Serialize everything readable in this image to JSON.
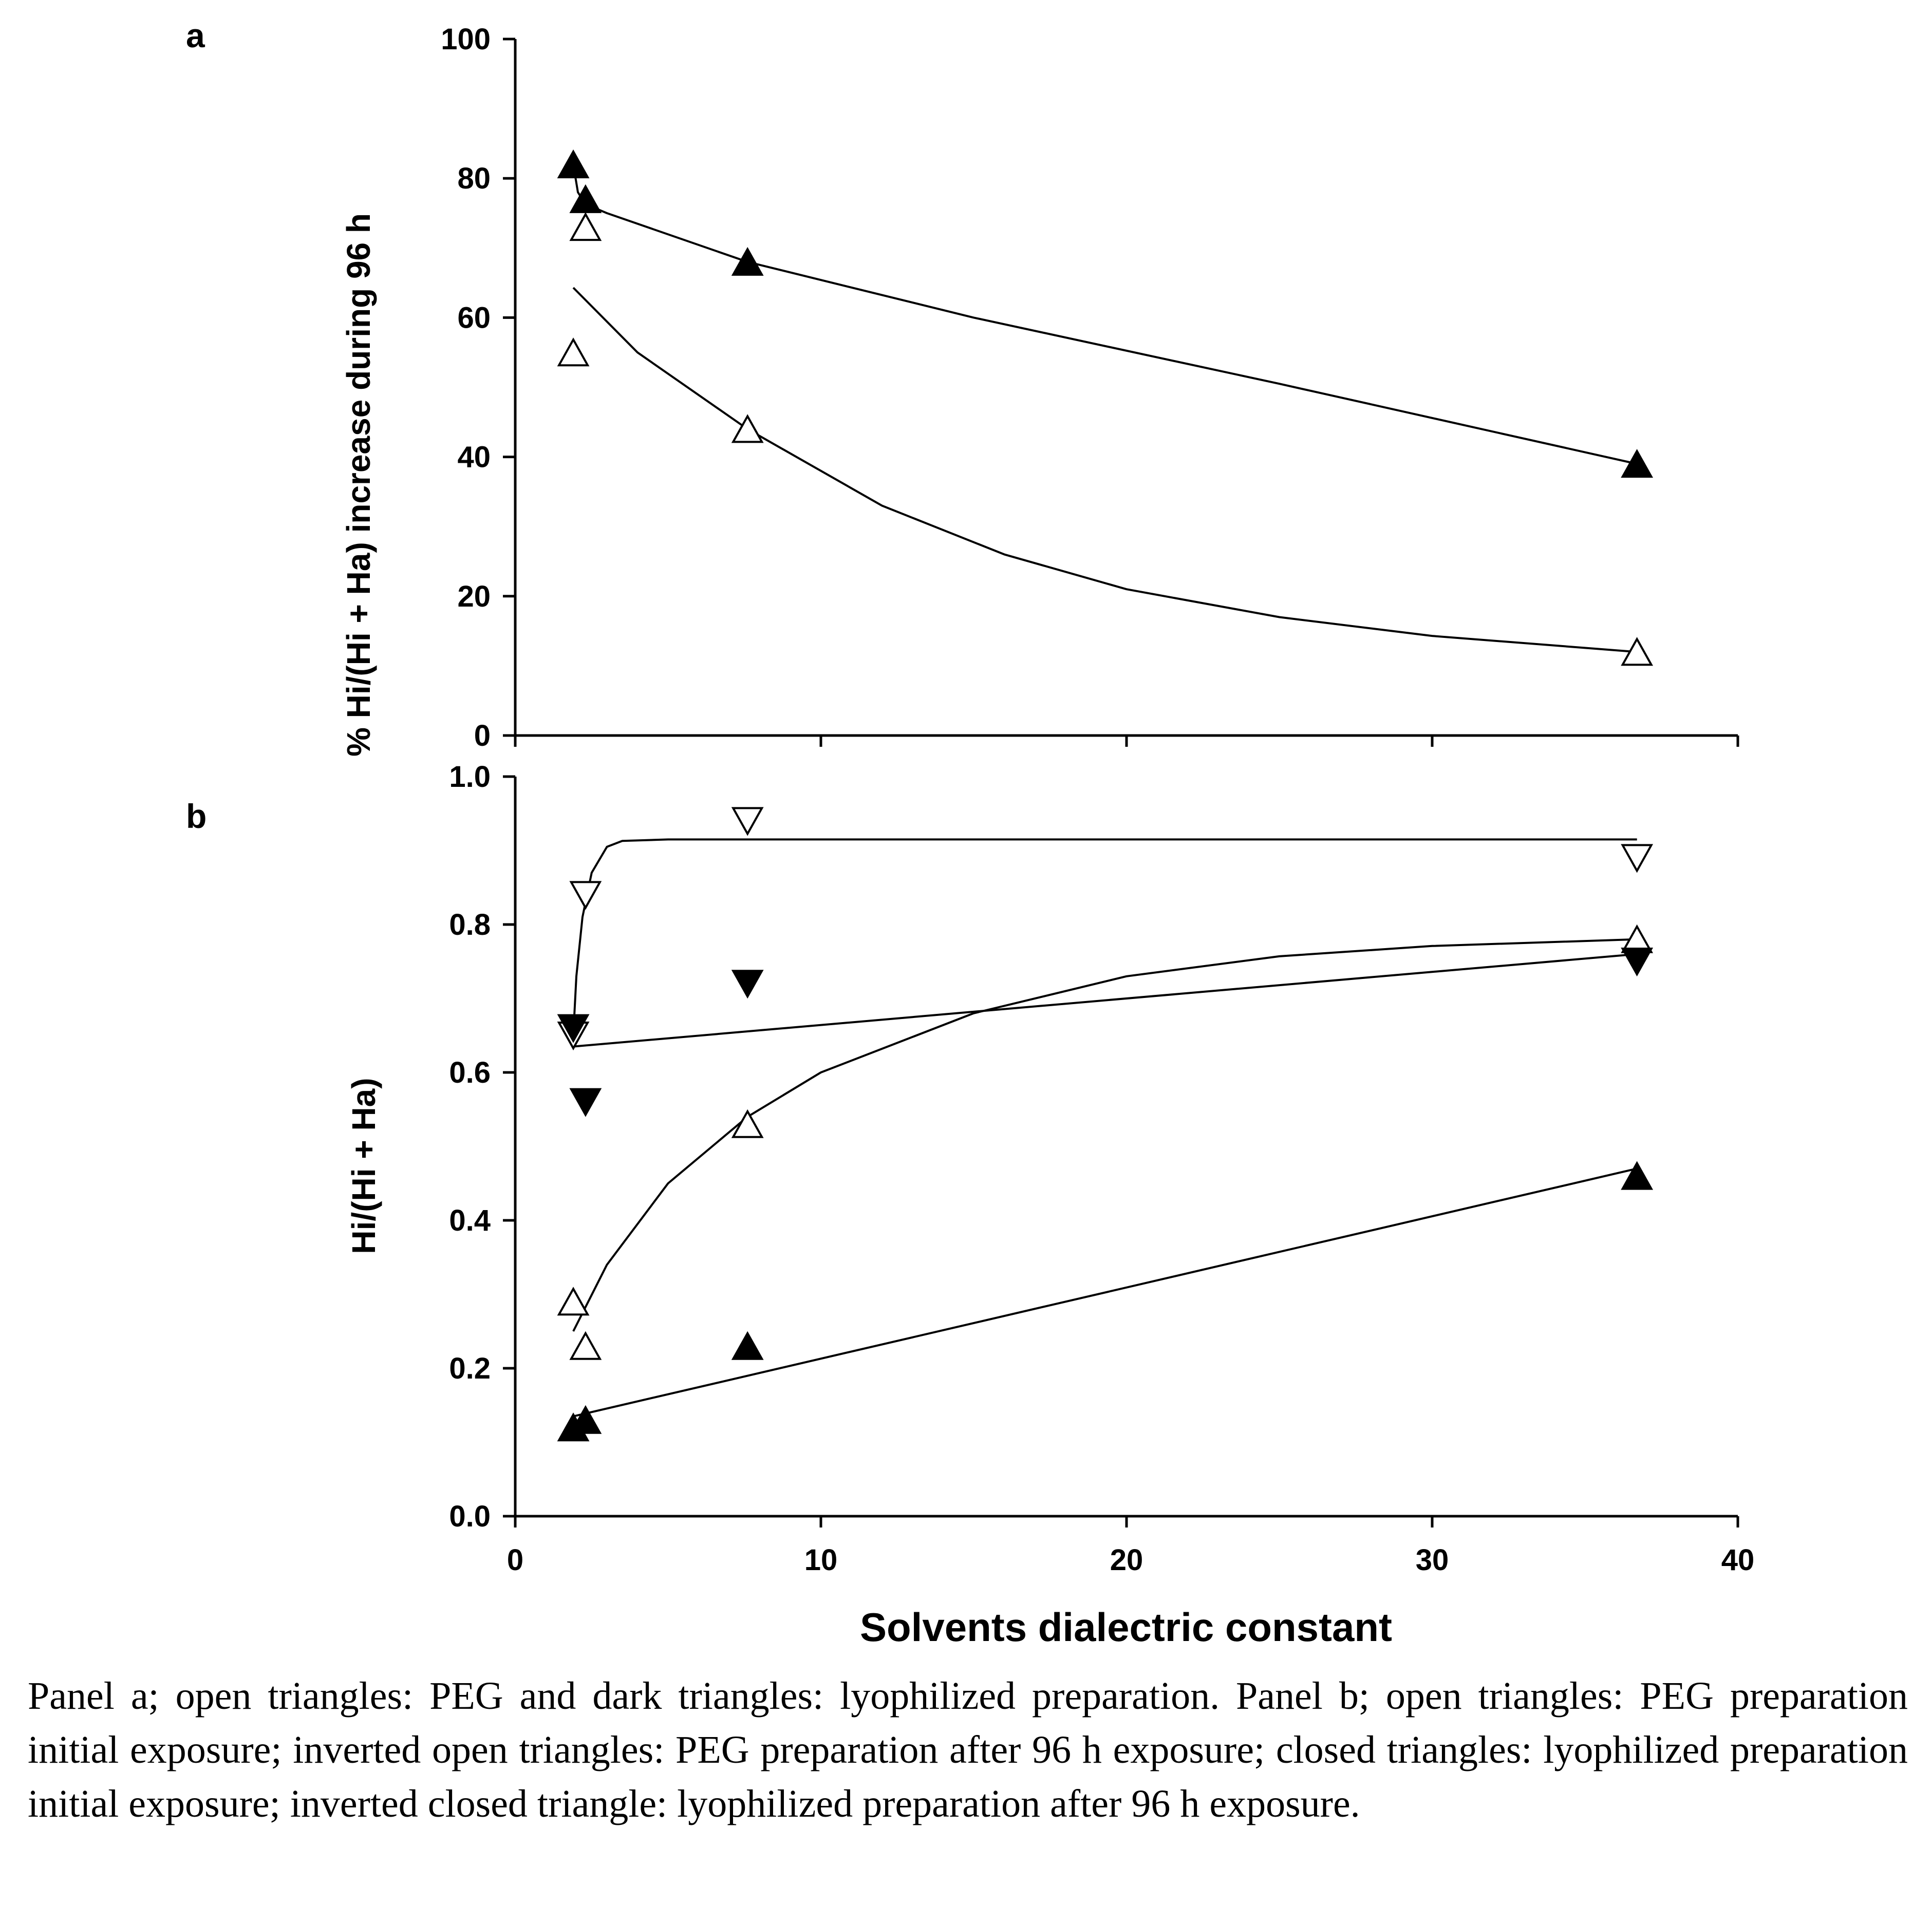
{
  "chart_data": [
    {
      "panel": "a",
      "type": "scatter",
      "title": "",
      "xlabel": "Solvents dialectric constant",
      "ylabel": "% Hi/(Hi + Ha) increase during 96 h",
      "xlim": [
        0,
        40
      ],
      "ylim": [
        0,
        100
      ],
      "xticks": [
        "0",
        "10",
        "20",
        "30",
        "40"
      ],
      "yticks": [
        "0",
        "20",
        "40",
        "60",
        "80",
        "100"
      ],
      "series": [
        {
          "name": "PEG",
          "marker": "open triangle",
          "points": [
            [
              1.9,
              55
            ],
            [
              2.3,
              73
            ],
            [
              7.6,
              44
            ],
            [
              36.7,
              12
            ]
          ],
          "fit": [
            [
              1.9,
              64.3
            ],
            [
              4,
              55
            ],
            [
              7.6,
              44
            ],
            [
              12,
              33
            ],
            [
              16,
              26
            ],
            [
              20,
              21
            ],
            [
              25,
              17
            ],
            [
              30,
              14.3
            ],
            [
              36.7,
              12
            ]
          ]
        },
        {
          "name": "lyophilized preparation",
          "marker": "closed triangle",
          "points": [
            [
              1.9,
              82
            ],
            [
              2.3,
              77
            ],
            [
              7.6,
              68
            ],
            [
              36.7,
              39
            ]
          ],
          "fit": [
            [
              1.9,
              82
            ],
            [
              2.05,
              78
            ],
            [
              2.3,
              76.3
            ],
            [
              3,
              75
            ],
            [
              7.6,
              68
            ],
            [
              15,
              60
            ],
            [
              25,
              50.5
            ],
            [
              36.7,
              39
            ]
          ]
        }
      ]
    },
    {
      "panel": "b",
      "type": "scatter",
      "title": "",
      "xlabel": "Solvents dialectric constant",
      "ylabel": "Hi/(Hi + Ha)",
      "xlim": [
        0,
        40
      ],
      "ylim": [
        0,
        1.0
      ],
      "xticks": [
        "0",
        "10",
        "20",
        "30",
        "40"
      ],
      "yticks": [
        "0.0",
        "0.2",
        "0.4",
        "0.6",
        "0.8",
        "1.0"
      ],
      "series": [
        {
          "name": "PEG preparation initial exposure",
          "marker": "open triangle",
          "points": [
            [
              1.9,
              0.29
            ],
            [
              2.3,
              0.23
            ],
            [
              7.6,
              0.53
            ],
            [
              36.7,
              0.78
            ]
          ],
          "fit": [
            [
              1.9,
              0.25
            ],
            [
              3,
              0.34
            ],
            [
              5,
              0.45
            ],
            [
              7.6,
              0.54
            ],
            [
              10,
              0.6
            ],
            [
              15,
              0.68
            ],
            [
              20,
              0.73
            ],
            [
              25,
              0.757
            ],
            [
              30,
              0.771
            ],
            [
              36.7,
              0.78
            ]
          ]
        },
        {
          "name": "PEG preparation after 96 h exposure",
          "marker": "inverted open triangle",
          "points": [
            [
              1.9,
              0.65
            ],
            [
              2.3,
              0.84
            ],
            [
              7.6,
              0.94
            ],
            [
              36.7,
              0.89
            ]
          ],
          "fit": [
            [
              1.9,
              0.65
            ],
            [
              2.0,
              0.73
            ],
            [
              2.2,
              0.81
            ],
            [
              2.5,
              0.87
            ],
            [
              3.0,
              0.905
            ],
            [
              3.5,
              0.913
            ],
            [
              5,
              0.915
            ],
            [
              36.7,
              0.915
            ]
          ]
        },
        {
          "name": "lyophilized preparation initial exposure",
          "marker": "closed triangle",
          "points": [
            [
              1.9,
              0.12
            ],
            [
              2.3,
              0.13
            ],
            [
              7.6,
              0.23
            ],
            [
              36.7,
              0.46
            ]
          ],
          "fit": [
            [
              1.9,
              0.135
            ],
            [
              36.7,
              0.47
            ]
          ]
        },
        {
          "name": "lyophilized preparation after 96 h exposure",
          "marker": "inverted closed triangle",
          "points": [
            [
              1.9,
              0.66
            ],
            [
              2.3,
              0.56
            ],
            [
              7.6,
              0.72
            ],
            [
              36.7,
              0.75
            ]
          ],
          "fit": [
            [
              1.9,
              0.635
            ],
            [
              36.7,
              0.76
            ]
          ]
        }
      ]
    }
  ],
  "panel_labels": {
    "a": "a",
    "b": "b"
  },
  "caption": "Panel a; open triangles: PEG and dark triangles: lyophilized preparation. Panel b; open triangles: PEG preparation initial exposure; inverted open triangles: PEG preparation after 96 h exposure; closed triangles: lyophilized preparation initial exposure; inverted closed triangle: lyophilized preparation after 96 h exposure."
}
